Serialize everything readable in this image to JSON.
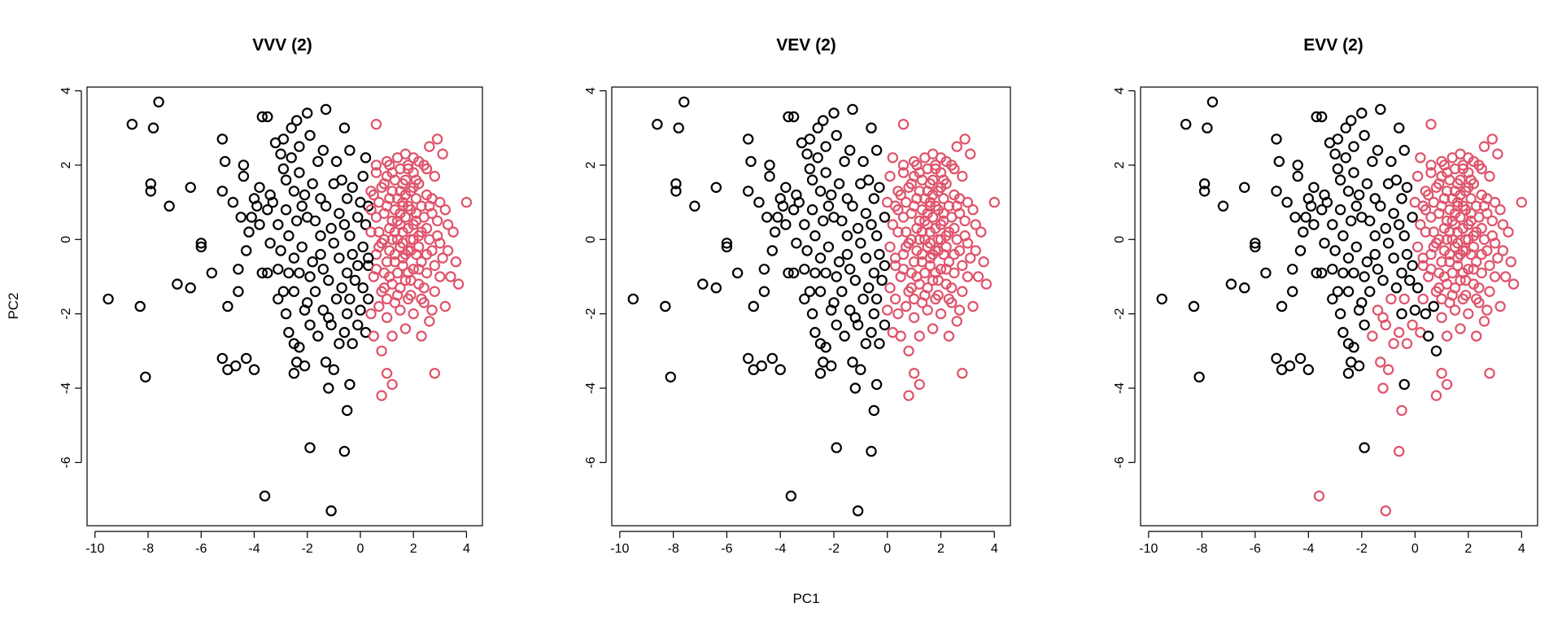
{
  "chart_data": [
    {
      "type": "scatter",
      "title": "VVV (2)",
      "xlabel": "PC1",
      "ylabel": "PC2",
      "xlim": [
        -10.3,
        4.6
      ],
      "ylim": [
        -7.7,
        4.1
      ],
      "xticks": [
        -10,
        -8,
        -6,
        -4,
        -2,
        0,
        2,
        4
      ],
      "yticks": [
        -6,
        -4,
        -2,
        0,
        2,
        4
      ],
      "colors": [
        "#000000",
        "#DF536B"
      ],
      "grid": false,
      "rule": "x<0.4"
    },
    {
      "type": "scatter",
      "title": "VEV (2)",
      "xlabel": "PC1",
      "ylabel": "PC2",
      "xlim": [
        -10.3,
        4.6
      ],
      "ylim": [
        -7.7,
        4.1
      ],
      "xticks": [
        -10,
        -8,
        -6,
        -4,
        -2,
        0,
        2,
        4
      ],
      "yticks": [
        -6,
        -4,
        -2,
        0,
        2,
        4
      ],
      "colors": [
        "#000000",
        "#DF536B"
      ],
      "grid": false,
      "rule": "x<0"
    },
    {
      "type": "scatter",
      "title": "EVV (2)",
      "xlabel": "PC1",
      "ylabel": "PC2",
      "xlim": [
        -10.3,
        4.6
      ],
      "ylim": [
        -7.7,
        4.1
      ],
      "xticks": [
        -10,
        -8,
        -6,
        -4,
        -2,
        0,
        2,
        4
      ],
      "yticks": [
        -6,
        -4,
        -2,
        0,
        2,
        4
      ],
      "colors": [
        "#000000",
        "#DF536B"
      ],
      "grid": false,
      "rule": "evv"
    }
  ],
  "points": [
    [
      -9.5,
      -1.6
    ],
    [
      -8.6,
      3.1
    ],
    [
      -8.3,
      -1.8
    ],
    [
      -8.1,
      -3.7
    ],
    [
      -7.9,
      1.5
    ],
    [
      -7.9,
      1.3
    ],
    [
      -7.8,
      3.0
    ],
    [
      -7.6,
      3.7
    ],
    [
      -7.2,
      0.9
    ],
    [
      -6.9,
      -1.2
    ],
    [
      -6.4,
      -1.3
    ],
    [
      -6.4,
      1.4
    ],
    [
      -6.0,
      -0.1
    ],
    [
      -6.0,
      -0.2
    ],
    [
      -5.6,
      -0.9
    ],
    [
      -5.2,
      1.3
    ],
    [
      -5.2,
      2.7
    ],
    [
      -5.2,
      -3.2
    ],
    [
      -5.1,
      2.1
    ],
    [
      -5.0,
      -3.5
    ],
    [
      -5.0,
      -1.8
    ],
    [
      -4.8,
      1.0
    ],
    [
      -4.7,
      -3.4
    ],
    [
      -4.6,
      -0.8
    ],
    [
      -4.6,
      -1.4
    ],
    [
      -4.5,
      0.6
    ],
    [
      -4.4,
      1.7
    ],
    [
      -4.4,
      2.0
    ],
    [
      -4.3,
      -3.2
    ],
    [
      -4.3,
      -0.3
    ],
    [
      -4.2,
      0.2
    ],
    [
      -4.1,
      0.6
    ],
    [
      -4.0,
      -3.5
    ],
    [
      -4.0,
      1.1
    ],
    [
      -3.9,
      0.9
    ],
    [
      -3.8,
      0.4
    ],
    [
      -3.8,
      1.4
    ],
    [
      -3.7,
      -0.9
    ],
    [
      -3.7,
      3.3
    ],
    [
      -3.6,
      -6.9
    ],
    [
      -3.5,
      3.3
    ],
    [
      -3.5,
      -0.9
    ],
    [
      -3.5,
      0.8
    ],
    [
      -3.4,
      -0.1
    ],
    [
      -3.4,
      1.2
    ],
    [
      -3.3,
      1.0
    ],
    [
      -3.2,
      2.6
    ],
    [
      -3.1,
      -1.6
    ],
    [
      -3.1,
      -0.8
    ],
    [
      -3.1,
      0.4
    ],
    [
      -3.0,
      -0.3
    ],
    [
      -3.0,
      2.3
    ],
    [
      -2.9,
      2.7
    ],
    [
      -2.9,
      1.9
    ],
    [
      -2.9,
      -1.4
    ],
    [
      -2.8,
      -2.0
    ],
    [
      -2.8,
      0.8
    ],
    [
      -2.8,
      1.6
    ],
    [
      -2.7,
      -2.5
    ],
    [
      -2.7,
      -0.9
    ],
    [
      -2.7,
      0.1
    ],
    [
      -2.6,
      2.2
    ],
    [
      -2.6,
      3.0
    ],
    [
      -2.5,
      -3.6
    ],
    [
      -2.5,
      -2.8
    ],
    [
      -2.5,
      -1.4
    ],
    [
      -2.5,
      -0.5
    ],
    [
      -2.5,
      1.3
    ],
    [
      -2.4,
      -3.3
    ],
    [
      -2.4,
      3.2
    ],
    [
      -2.4,
      0.5
    ],
    [
      -2.3,
      -2.9
    ],
    [
      -2.3,
      2.5
    ],
    [
      -2.3,
      1.8
    ],
    [
      -2.3,
      -0.9
    ],
    [
      -2.2,
      -0.2
    ],
    [
      -2.2,
      0.9
    ],
    [
      -2.1,
      -1.9
    ],
    [
      -2.1,
      -3.4
    ],
    [
      -2.1,
      1.2
    ],
    [
      -2.0,
      -1.7
    ],
    [
      -2.0,
      0.6
    ],
    [
      -2.0,
      3.4
    ],
    [
      -1.9,
      -5.6
    ],
    [
      -1.9,
      -2.3
    ],
    [
      -1.9,
      -1.0
    ],
    [
      -1.9,
      2.8
    ],
    [
      -1.8,
      -0.6
    ],
    [
      -1.8,
      1.5
    ],
    [
      -1.7,
      0.5
    ],
    [
      -1.7,
      -1.4
    ],
    [
      -1.6,
      2.1
    ],
    [
      -1.6,
      -2.6
    ],
    [
      -1.5,
      0.1
    ],
    [
      -1.5,
      -0.4
    ],
    [
      -1.5,
      1.1
    ],
    [
      -1.4,
      2.4
    ],
    [
      -1.4,
      -1.9
    ],
    [
      -1.4,
      -0.8
    ],
    [
      -1.3,
      3.5
    ],
    [
      -1.3,
      0.9
    ],
    [
      -1.3,
      -3.3
    ],
    [
      -1.2,
      -2.1
    ],
    [
      -1.2,
      -4.0
    ],
    [
      -1.2,
      -1.1
    ],
    [
      -1.1,
      -7.3
    ],
    [
      -1.1,
      0.3
    ],
    [
      -1.1,
      -2.3
    ],
    [
      -1.0,
      1.5
    ],
    [
      -1.0,
      -0.1
    ],
    [
      -1.0,
      -3.5
    ],
    [
      -0.9,
      2.1
    ],
    [
      -0.9,
      -1.6
    ],
    [
      -0.8,
      -0.5
    ],
    [
      -0.8,
      0.7
    ],
    [
      -0.8,
      -2.8
    ],
    [
      -0.7,
      -1.3
    ],
    [
      -0.7,
      1.6
    ],
    [
      -0.6,
      -5.7
    ],
    [
      -0.6,
      0.4
    ],
    [
      -0.6,
      -2.5
    ],
    [
      -0.6,
      3.0
    ],
    [
      -0.5,
      -0.9
    ],
    [
      -0.5,
      1.1
    ],
    [
      -0.5,
      -4.6
    ],
    [
      -0.5,
      -2.0
    ],
    [
      -0.4,
      -3.9
    ],
    [
      -0.4,
      0.1
    ],
    [
      -0.4,
      -1.6
    ],
    [
      -0.4,
      2.4
    ],
    [
      -0.3,
      -0.4
    ],
    [
      -0.3,
      -2.8
    ],
    [
      -0.3,
      1.4
    ],
    [
      -0.2,
      -1.1
    ],
    [
      -0.1,
      0.6
    ],
    [
      -0.1,
      -2.3
    ],
    [
      -0.1,
      -0.7
    ],
    [
      0.0,
      1.0
    ],
    [
      0.0,
      -1.9
    ],
    [
      0.1,
      -0.2
    ],
    [
      0.1,
      1.7
    ],
    [
      0.1,
      -1.3
    ],
    [
      0.2,
      0.4
    ],
    [
      0.2,
      -2.5
    ],
    [
      0.2,
      2.2
    ],
    [
      0.3,
      -0.7
    ],
    [
      0.3,
      0.9
    ],
    [
      0.3,
      -1.6
    ],
    [
      0.4,
      -2.0
    ],
    [
      0.4,
      0.2
    ],
    [
      0.4,
      1.3
    ],
    [
      0.5,
      -1.0
    ],
    [
      0.5,
      -2.6
    ],
    [
      0.6,
      3.1
    ],
    [
      0.6,
      0.6
    ],
    [
      0.6,
      -0.4
    ],
    [
      0.6,
      2.0
    ],
    [
      0.7,
      -1.8
    ],
    [
      0.7,
      1.0
    ],
    [
      0.8,
      -0.1
    ],
    [
      0.8,
      -3.0
    ],
    [
      0.8,
      -4.2
    ],
    [
      0.9,
      0.7
    ],
    [
      0.9,
      -1.3
    ],
    [
      0.9,
      1.5
    ],
    [
      1.0,
      -3.6
    ],
    [
      1.0,
      -0.6
    ],
    [
      1.0,
      2.1
    ],
    [
      1.0,
      -2.1
    ],
    [
      1.1,
      0.3
    ],
    [
      1.1,
      1.1
    ],
    [
      1.1,
      -1.0
    ],
    [
      1.2,
      -3.9
    ],
    [
      1.2,
      -2.6
    ],
    [
      1.2,
      0.0
    ],
    [
      1.2,
      1.8
    ],
    [
      1.3,
      -0.4
    ],
    [
      1.3,
      0.8
    ],
    [
      1.3,
      -1.7
    ],
    [
      1.4,
      2.2
    ],
    [
      1.4,
      -0.9
    ],
    [
      1.4,
      0.5
    ],
    [
      1.5,
      1.3
    ],
    [
      1.5,
      -0.2
    ],
    [
      1.5,
      -1.3
    ],
    [
      1.5,
      1.9
    ],
    [
      1.6,
      0.2
    ],
    [
      1.6,
      -0.7
    ],
    [
      1.6,
      1.0
    ],
    [
      1.7,
      -2.4
    ],
    [
      1.7,
      0.6
    ],
    [
      1.7,
      -1.1
    ],
    [
      1.7,
      1.6
    ],
    [
      1.8,
      -0.3
    ],
    [
      1.8,
      0.9
    ],
    [
      1.8,
      2.0
    ],
    [
      1.9,
      0.0
    ],
    [
      1.9,
      -1.5
    ],
    [
      1.9,
      1.3
    ],
    [
      2.0,
      -0.8
    ],
    [
      2.0,
      0.4
    ],
    [
      2.0,
      1.8
    ],
    [
      2.0,
      -2.0
    ],
    [
      2.1,
      -0.4
    ],
    [
      2.1,
      1.1
    ],
    [
      2.1,
      0.7
    ],
    [
      2.2,
      -1.2
    ],
    [
      2.2,
      0.1
    ],
    [
      2.2,
      1.5
    ],
    [
      2.3,
      -2.6
    ],
    [
      2.3,
      -0.6
    ],
    [
      2.3,
      0.9
    ],
    [
      2.4,
      2.0
    ],
    [
      2.4,
      -1.7
    ],
    [
      2.5,
      0.3
    ],
    [
      2.5,
      1.2
    ],
    [
      2.5,
      -0.9
    ],
    [
      2.6,
      2.5
    ],
    [
      2.6,
      -2.2
    ],
    [
      2.7,
      -0.3
    ],
    [
      2.7,
      0.7
    ],
    [
      2.8,
      1.7
    ],
    [
      2.8,
      -1.4
    ],
    [
      2.8,
      -3.6
    ],
    [
      2.9,
      2.7
    ],
    [
      2.9,
      0.1
    ],
    [
      3.0,
      -1.0
    ],
    [
      3.0,
      1.0
    ],
    [
      3.1,
      2.3
    ],
    [
      3.1,
      -0.5
    ],
    [
      3.2,
      -1.8
    ],
    [
      3.3,
      0.4
    ],
    [
      3.4,
      -1.0
    ],
    [
      3.5,
      0.2
    ],
    [
      3.6,
      -0.6
    ],
    [
      3.7,
      -1.2
    ],
    [
      4.0,
      1.0
    ],
    [
      1.4,
      0.0
    ],
    [
      1.6,
      -0.1
    ],
    [
      1.8,
      0.3
    ],
    [
      1.2,
      0.5
    ],
    [
      2.0,
      0.0
    ],
    [
      1.5,
      0.7
    ],
    [
      1.9,
      -0.3
    ],
    [
      1.3,
      -0.6
    ],
    [
      1.7,
      1.2
    ],
    [
      2.1,
      0.5
    ],
    [
      1.0,
      0.9
    ],
    [
      2.3,
      0.2
    ],
    [
      1.6,
      -0.5
    ],
    [
      1.4,
      1.1
    ],
    [
      1.9,
      0.8
    ],
    [
      0.9,
      0.0
    ],
    [
      2.2,
      -0.2
    ],
    [
      1.1,
      -0.3
    ],
    [
      2.4,
      0.6
    ],
    [
      1.8,
      -0.9
    ],
    [
      1.5,
      0.4
    ],
    [
      0.8,
      1.4
    ],
    [
      2.6,
      0.0
    ],
    [
      1.3,
      1.6
    ],
    [
      2.0,
      1.4
    ],
    [
      1.7,
      -0.4
    ],
    [
      0.7,
      0.2
    ],
    [
      2.5,
      -0.4
    ],
    [
      1.2,
      -1.2
    ],
    [
      1.8,
      1.9
    ],
    [
      2.7,
      1.1
    ],
    [
      1.0,
      1.7
    ],
    [
      2.2,
      -0.8
    ],
    [
      0.6,
      -0.8
    ],
    [
      2.9,
      0.5
    ],
    [
      1.6,
      1.5
    ],
    [
      0.5,
      1.2
    ],
    [
      2.4,
      -1.3
    ],
    [
      1.1,
      2.0
    ],
    [
      3.0,
      -0.1
    ],
    [
      1.9,
      -1.1
    ],
    [
      0.7,
      -0.2
    ],
    [
      2.1,
      1.6
    ],
    [
      1.4,
      -1.5
    ],
    [
      2.6,
      0.9
    ],
    [
      0.9,
      -0.9
    ],
    [
      1.7,
      2.3
    ],
    [
      3.2,
      0.8
    ],
    [
      1.3,
      0.2
    ],
    [
      2.3,
      -1.6
    ],
    [
      0.4,
      0.8
    ],
    [
      2.0,
      2.2
    ],
    [
      1.5,
      -1.9
    ],
    [
      2.8,
      -0.7
    ],
    [
      1.2,
      1.3
    ],
    [
      0.6,
      1.8
    ],
    [
      3.3,
      -0.3
    ],
    [
      1.8,
      -1.6
    ],
    [
      2.5,
      1.9
    ],
    [
      1.0,
      -1.6
    ],
    [
      0.3,
      -0.5
    ],
    [
      2.2,
      2.1
    ],
    [
      2.7,
      -1.9
    ],
    [
      1.6,
      0.9
    ],
    [
      0.8,
      -1.4
    ]
  ],
  "evv_black": [
    [
      0.0,
      -1.9
    ],
    [
      0.1,
      -1.3
    ],
    [
      0.4,
      -2.0
    ],
    [
      0.5,
      -2.6
    ],
    [
      0.7,
      -1.8
    ],
    [
      0.8,
      -3.0
    ],
    [
      -0.4,
      -3.9
    ],
    [
      -0.5,
      -2.0
    ],
    [
      -1.9,
      -5.6
    ],
    [
      -2.1,
      -1.9
    ],
    [
      -2.0,
      -1.7
    ],
    [
      -2.2,
      -2.3
    ],
    [
      -2.5,
      -2.8
    ],
    [
      -2.4,
      -3.3
    ],
    [
      -2.5,
      -3.6
    ],
    [
      -2.3,
      -2.9
    ],
    [
      -2.1,
      -3.4
    ],
    [
      -1.9,
      -2.3
    ],
    [
      -2.6,
      -2.0
    ],
    [
      -2.8,
      -2.0
    ],
    [
      -2.7,
      -2.5
    ],
    [
      -3.1,
      -1.6
    ],
    [
      -2.9,
      -1.4
    ],
    [
      -2.5,
      -1.4
    ],
    [
      -4.3,
      -3.2
    ],
    [
      -4.0,
      -3.5
    ]
  ]
}
